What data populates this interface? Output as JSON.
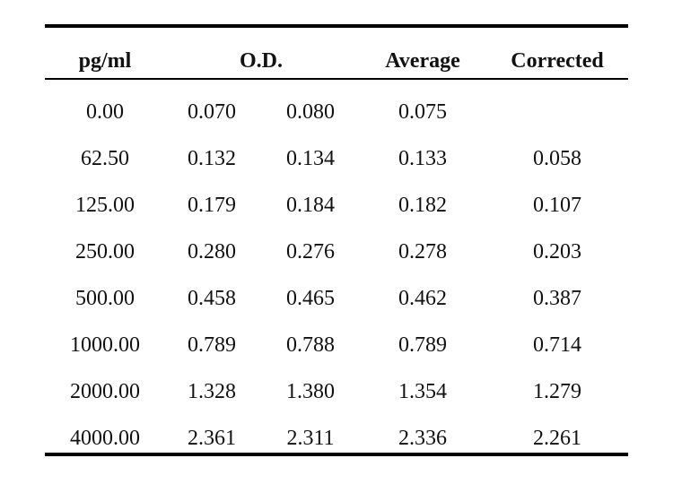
{
  "table": {
    "headers": {
      "concentration": "pg/ml",
      "od": "O.D.",
      "average": "Average",
      "corrected": "Corrected"
    },
    "rows": [
      [
        "0.00",
        "0.070",
        "0.080",
        "0.075",
        ""
      ],
      [
        "62.50",
        "0.132",
        "0.134",
        "0.133",
        "0.058"
      ],
      [
        "125.00",
        "0.179",
        "0.184",
        "0.182",
        "0.107"
      ],
      [
        "250.00",
        "0.280",
        "0.276",
        "0.278",
        "0.203"
      ],
      [
        "500.00",
        "0.458",
        "0.465",
        "0.462",
        "0.387"
      ],
      [
        "1000.00",
        "0.789",
        "0.788",
        "0.789",
        "0.714"
      ],
      [
        "2000.00",
        "1.328",
        "1.380",
        "1.354",
        "1.279"
      ],
      [
        "4000.00",
        "2.361",
        "2.311",
        "2.336",
        "2.261"
      ]
    ]
  }
}
